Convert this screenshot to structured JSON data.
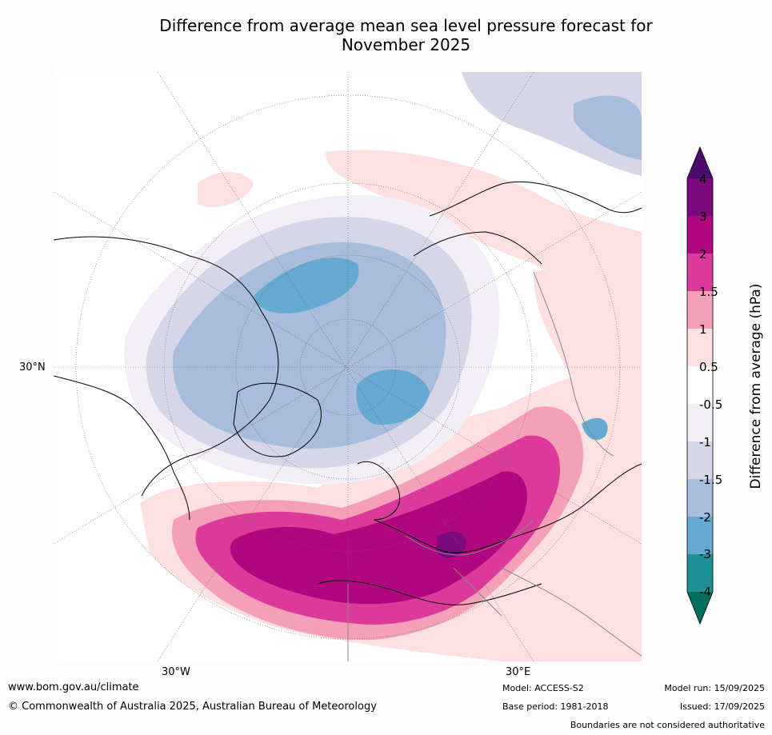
{
  "title": {
    "line1": "Difference from average mean sea level pressure forecast for",
    "line2": "November 2025"
  },
  "map": {
    "projection": "north polar stereographic",
    "labels": {
      "lat30n": "30°N",
      "lon30w": "30°W",
      "lon30e": "30°E"
    }
  },
  "colorbar": {
    "title": "Difference from average (hPa)",
    "ticks": [
      "4",
      "3",
      "2",
      "1.5",
      "1",
      "0.5",
      "-0.5",
      "-1",
      "-1.5",
      "-2",
      "-3",
      "-4"
    ],
    "colors": {
      "above_4": "#4b0a6e",
      "3_to_4": "#7a0a7d",
      "2_to_3": "#b0067f",
      "1_5_to_2": "#dc3a9a",
      "1_to_1_5": "#f59fb9",
      "0_5_to_1": "#fde0e0",
      "neutral": "#ffffff",
      "m1_to_m0_5": "#f3eff6",
      "m1_5_to_m1": "#d6d6e8",
      "m2_to_m1_5": "#a8bcdb",
      "m3_to_m2": "#66a9d1",
      "m4_to_m3": "#1f9196",
      "below_m4": "#00705e"
    }
  },
  "footer": {
    "website": "www.bom.gov.au/climate",
    "copyright": "© Commonwealth of Australia 2025, Australian Bureau of Meteorology",
    "model": "Model: ACCESS-S2",
    "base_period": "Base period: 1981-2018",
    "model_run": "Model run: 15/09/2025",
    "issued": "Issued: 17/09/2025",
    "disclaimer": "Boundaries are not considered authoritative"
  }
}
